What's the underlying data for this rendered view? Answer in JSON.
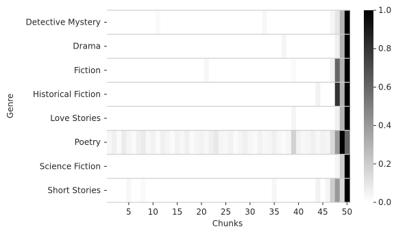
{
  "chart_data": {
    "type": "heatmap",
    "title": "",
    "xlabel": "Chunks",
    "ylabel": "Genre",
    "grid": false,
    "colormap": "Greys",
    "colorbar_range": [
      0.0,
      1.0
    ],
    "colorbar_ticks": [
      "0.0",
      "0.2",
      "0.4",
      "0.6",
      "0.8",
      "1.0"
    ],
    "colorbar_tick_values": [
      0.0,
      0.2,
      0.4,
      0.6,
      0.8,
      1.0
    ],
    "x_range": [
      1,
      50
    ],
    "x_ticks": [
      "5",
      "10",
      "15",
      "20",
      "25",
      "30",
      "35",
      "40",
      "45",
      "50"
    ],
    "x_tick_values": [
      5,
      10,
      15,
      20,
      25,
      30,
      35,
      40,
      45,
      50
    ],
    "rows": [
      {
        "label": "Detective Mystery",
        "values": [
          0.0,
          0.0,
          0.0,
          0.0,
          0.0,
          0.0,
          0.0,
          0.0,
          0.0,
          0.0,
          0.02,
          0.0,
          0.0,
          0.0,
          0.0,
          0.0,
          0.0,
          0.0,
          0.0,
          0.0,
          0.0,
          0.0,
          0.0,
          0.0,
          0.0,
          0.0,
          0.0,
          0.0,
          0.0,
          0.0,
          0.0,
          0.0,
          0.03,
          0.0,
          0.0,
          0.0,
          0.0,
          0.0,
          0.0,
          0.0,
          0.0,
          0.0,
          0.0,
          0.0,
          0.0,
          0.0,
          0.04,
          0.1,
          0.3,
          1.0
        ]
      },
      {
        "label": "Drama",
        "values": [
          0.0,
          0.0,
          0.0,
          0.0,
          0.0,
          0.0,
          0.0,
          0.0,
          0.0,
          0.0,
          0.0,
          0.0,
          0.0,
          0.0,
          0.0,
          0.0,
          0.0,
          0.0,
          0.0,
          0.0,
          0.0,
          0.0,
          0.0,
          0.0,
          0.0,
          0.0,
          0.0,
          0.0,
          0.0,
          0.0,
          0.0,
          0.0,
          0.0,
          0.0,
          0.0,
          0.0,
          0.04,
          0.0,
          0.0,
          0.0,
          0.0,
          0.0,
          0.0,
          0.0,
          0.0,
          0.0,
          0.0,
          0.06,
          0.3,
          1.0
        ]
      },
      {
        "label": "Fiction",
        "values": [
          0.0,
          0.0,
          0.0,
          0.0,
          0.0,
          0.0,
          0.0,
          0.0,
          0.0,
          0.0,
          0.0,
          0.0,
          0.0,
          0.0,
          0.0,
          0.0,
          0.0,
          0.0,
          0.0,
          0.0,
          0.03,
          0.0,
          0.0,
          0.0,
          0.0,
          0.0,
          0.0,
          0.0,
          0.0,
          0.0,
          0.0,
          0.0,
          0.0,
          0.0,
          0.0,
          0.0,
          0.0,
          0.0,
          0.02,
          0.0,
          0.0,
          0.0,
          0.0,
          0.0,
          0.0,
          0.0,
          0.05,
          0.6,
          0.3,
          1.0
        ]
      },
      {
        "label": "Historical Fiction",
        "values": [
          0.0,
          0.0,
          0.0,
          0.0,
          0.0,
          0.0,
          0.0,
          0.0,
          0.0,
          0.0,
          0.0,
          0.0,
          0.0,
          0.0,
          0.0,
          0.0,
          0.0,
          0.0,
          0.0,
          0.0,
          0.0,
          0.0,
          0.0,
          0.0,
          0.0,
          0.0,
          0.0,
          0.0,
          0.0,
          0.0,
          0.0,
          0.0,
          0.0,
          0.0,
          0.0,
          0.0,
          0.0,
          0.0,
          0.0,
          0.0,
          0.0,
          0.0,
          0.0,
          0.05,
          0.0,
          0.0,
          0.0,
          0.8,
          0.3,
          1.0
        ]
      },
      {
        "label": "Love Stories",
        "values": [
          0.0,
          0.0,
          0.0,
          0.0,
          0.0,
          0.0,
          0.0,
          0.0,
          0.0,
          0.0,
          0.0,
          0.0,
          0.0,
          0.0,
          0.0,
          0.0,
          0.0,
          0.0,
          0.0,
          0.0,
          0.0,
          0.0,
          0.0,
          0.0,
          0.0,
          0.0,
          0.0,
          0.0,
          0.0,
          0.0,
          0.0,
          0.0,
          0.0,
          0.0,
          0.0,
          0.0,
          0.0,
          0.0,
          0.04,
          0.0,
          0.0,
          0.0,
          0.0,
          0.0,
          0.0,
          0.0,
          0.0,
          0.06,
          0.3,
          1.0
        ]
      },
      {
        "label": "Poetry",
        "values": [
          0.03,
          0.06,
          0.02,
          0.08,
          0.04,
          0.02,
          0.06,
          0.08,
          0.03,
          0.05,
          0.02,
          0.06,
          0.04,
          0.02,
          0.05,
          0.03,
          0.06,
          0.02,
          0.04,
          0.05,
          0.03,
          0.06,
          0.09,
          0.04,
          0.03,
          0.05,
          0.02,
          0.04,
          0.06,
          0.03,
          0.02,
          0.05,
          0.03,
          0.04,
          0.06,
          0.03,
          0.02,
          0.04,
          0.18,
          0.05,
          0.03,
          0.04,
          0.06,
          0.03,
          0.05,
          0.04,
          0.15,
          0.4,
          1.0,
          0.6
        ]
      },
      {
        "label": "Science Fiction",
        "values": [
          0.0,
          0.0,
          0.0,
          0.0,
          0.0,
          0.0,
          0.0,
          0.0,
          0.0,
          0.0,
          0.0,
          0.0,
          0.0,
          0.0,
          0.0,
          0.0,
          0.0,
          0.0,
          0.0,
          0.0,
          0.0,
          0.0,
          0.0,
          0.0,
          0.0,
          0.0,
          0.0,
          0.0,
          0.0,
          0.0,
          0.0,
          0.0,
          0.0,
          0.0,
          0.0,
          0.0,
          0.0,
          0.0,
          0.0,
          0.0,
          0.0,
          0.0,
          0.0,
          0.0,
          0.0,
          0.0,
          0.0,
          0.04,
          0.2,
          1.0
        ]
      },
      {
        "label": "Short Stories",
        "values": [
          0.0,
          0.0,
          0.0,
          0.0,
          0.03,
          0.0,
          0.0,
          0.02,
          0.0,
          0.0,
          0.0,
          0.0,
          0.0,
          0.0,
          0.0,
          0.0,
          0.0,
          0.0,
          0.0,
          0.0,
          0.0,
          0.0,
          0.0,
          0.0,
          0.0,
          0.0,
          0.0,
          0.0,
          0.0,
          0.0,
          0.0,
          0.0,
          0.0,
          0.0,
          0.03,
          0.0,
          0.0,
          0.0,
          0.0,
          0.0,
          0.0,
          0.0,
          0.0,
          0.05,
          0.0,
          0.04,
          0.2,
          0.4,
          0.15,
          1.0
        ]
      }
    ]
  }
}
